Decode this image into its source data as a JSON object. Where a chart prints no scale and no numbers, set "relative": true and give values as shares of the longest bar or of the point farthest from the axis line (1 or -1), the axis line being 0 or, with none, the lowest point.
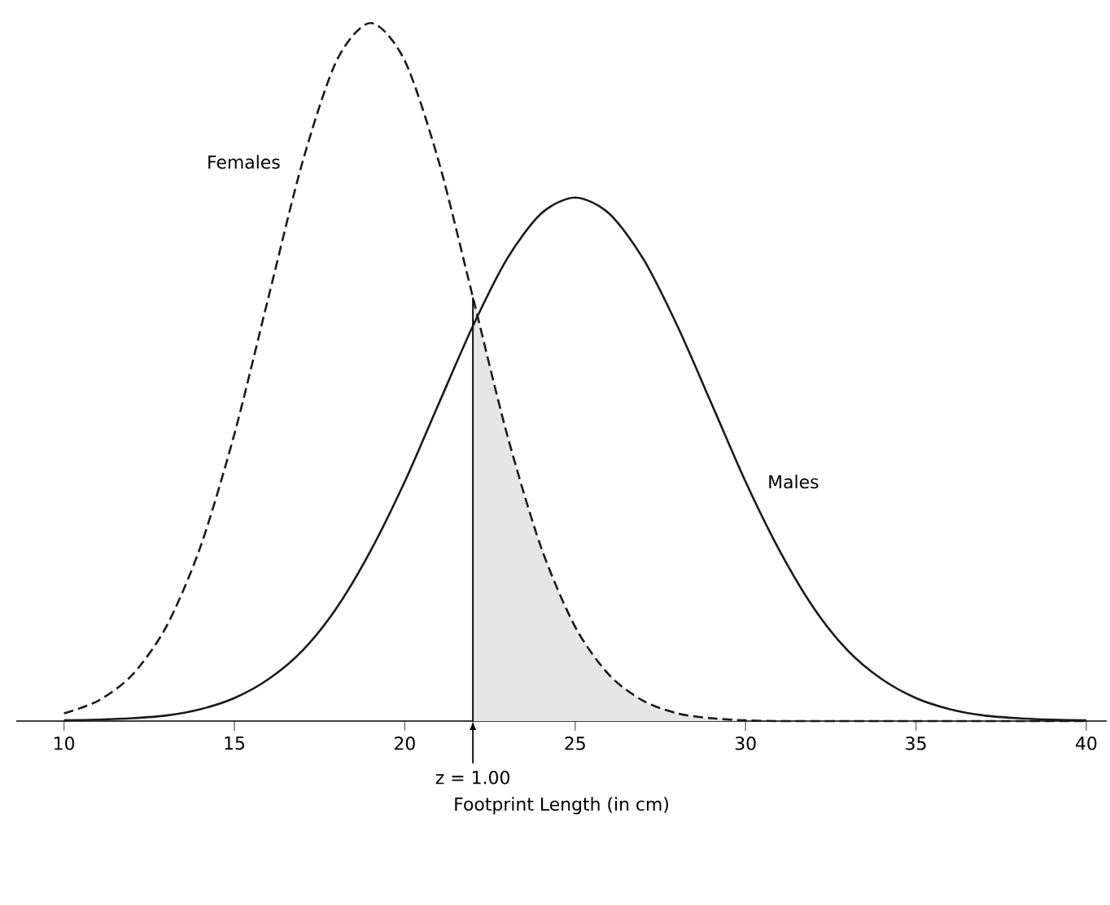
{
  "chart_data": {
    "type": "line",
    "relative": true,
    "xlabel": "Footprint Length (in cm)",
    "x": [
      10,
      11,
      12,
      13,
      14,
      15,
      16,
      17,
      18,
      19,
      20,
      21,
      22,
      23,
      24,
      25,
      26,
      27,
      28,
      29,
      30,
      31,
      32,
      33,
      34,
      35,
      36,
      37,
      38,
      39,
      40
    ],
    "xlim": [
      8.6,
      40.6
    ],
    "xticks": [
      10,
      15,
      20,
      25,
      30,
      35,
      40
    ],
    "series": [
      {
        "type": "area",
        "color": "#e6e6e6",
        "x": [
          22,
          23,
          24,
          25,
          26,
          27,
          28,
          29,
          30
        ],
        "values": [
          0.607,
          0.411,
          0.249,
          0.135,
          0.066,
          0.029,
          0.011,
          0.004,
          0.001
        ]
      },
      {
        "name": "Females",
        "color": "#1a1a1a",
        "line_style": "dashed",
        "values": [
          0.011,
          0.029,
          0.066,
          0.135,
          0.249,
          0.411,
          0.607,
          0.801,
          0.946,
          1,
          0.946,
          0.801,
          0.607,
          0.411,
          0.249,
          0.135,
          0.066,
          0.029,
          0.011,
          0.004,
          0.001,
          0,
          0,
          0,
          0,
          0,
          0,
          0,
          0,
          0,
          0
        ]
      },
      {
        "name": "Males",
        "color": "#1a1a1a",
        "line_style": "solid",
        "values": [
          0.001,
          0.002,
          0.004,
          0.008,
          0.017,
          0.033,
          0.06,
          0.101,
          0.162,
          0.244,
          0.343,
          0.455,
          0.566,
          0.662,
          0.727,
          0.75,
          0.727,
          0.662,
          0.566,
          0.455,
          0.343,
          0.244,
          0.162,
          0.101,
          0.06,
          0.033,
          0.017,
          0.008,
          0.004,
          0.002,
          0.001
        ]
      }
    ],
    "ref_lines": [
      {
        "axis": "x",
        "value": 22
      }
    ],
    "annotations": [
      {
        "text": "z = 1.00",
        "x": 22,
        "y": 0
      }
    ]
  }
}
